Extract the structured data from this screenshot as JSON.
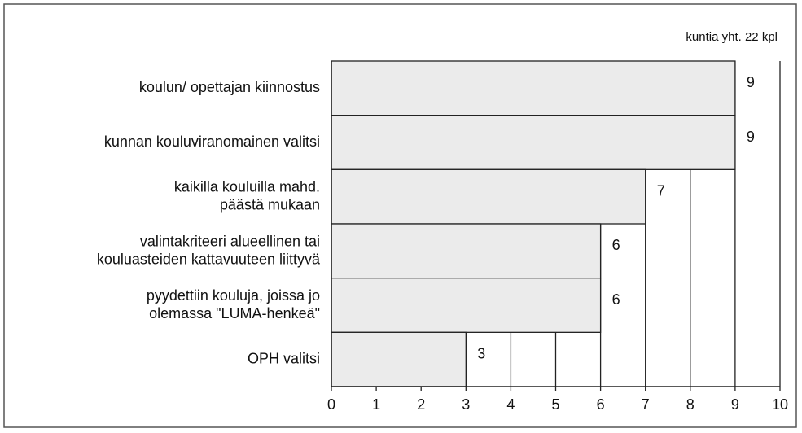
{
  "chart_data": {
    "type": "bar",
    "orientation": "horizontal",
    "annotation": "kuntia yht. 22 kpl",
    "categories": [
      "koulun/ opettajan kiinnostus",
      "kunnan kouluviranomainen valitsi",
      "kaikilla kouluilla mahd.\npäästä mukaan",
      "valintakriteeri alueellinen tai\nkouluasteiden kattavuuteen liittyvä",
      "pyydettiin kouluja, joissa jo\nolemassa \"LUMA-henkeä\"",
      "OPH valitsi"
    ],
    "values": [
      9,
      9,
      7,
      6,
      6,
      3
    ],
    "color": "#ebebeb",
    "xlim": [
      0,
      10
    ],
    "xticks": [
      0,
      1,
      2,
      3,
      4,
      5,
      6,
      7,
      8,
      9,
      10
    ],
    "grid": true
  }
}
